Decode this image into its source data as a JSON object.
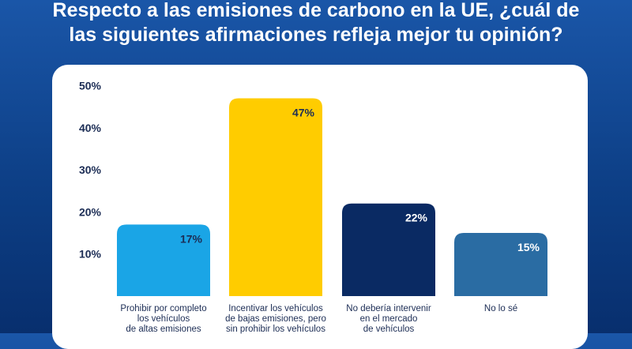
{
  "header": {
    "title_line1": "Respecto a las emisiones de carbono en la UE, ¿cuál de",
    "title_line2": "las siguientes afirmaciones refleja mejor tu opinión?"
  },
  "chart_data": {
    "type": "bar",
    "categories": [
      [
        "Prohibir por completo",
        "los vehículos",
        "de altas emisiones"
      ],
      [
        "Incentivar los vehículos",
        "de bajas emisiones, pero",
        "sin prohibir los vehículos"
      ],
      [
        "No debería intervenir",
        "en el mercado",
        "de vehículos"
      ],
      [
        "No lo sé"
      ]
    ],
    "values": [
      17,
      47,
      22,
      15
    ],
    "data_labels": [
      "17%",
      "47%",
      "22%",
      "15%"
    ],
    "colors": [
      "#1aa5e6",
      "#ffcc00",
      "#0a2a63",
      "#2a6ca3"
    ],
    "label_colors": [
      "#1c2d55",
      "#1c2d55",
      "#ffffff",
      "#ffffff"
    ],
    "yticks": [
      10,
      20,
      30,
      40,
      50
    ],
    "ytick_labels": [
      "10%",
      "20%",
      "30%",
      "40%",
      "50%"
    ],
    "ylim": [
      0,
      50
    ],
    "grid": false,
    "legend": "none"
  }
}
